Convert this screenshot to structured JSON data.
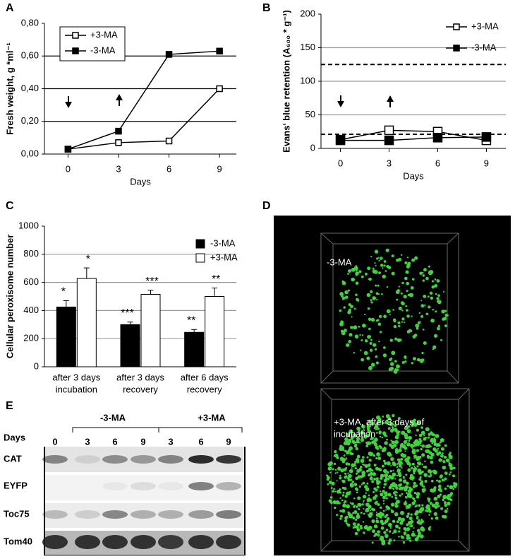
{
  "panel_labels": [
    "A",
    "B",
    "C",
    "D",
    "E"
  ],
  "chart_data": [
    {
      "type": "line",
      "ylabel": "Fresh weight, g *ml⁻¹",
      "xlabel": "Days",
      "x": [
        0,
        3,
        6,
        9
      ],
      "xlim": [
        -1.4,
        10
      ],
      "xticks": [
        0,
        3,
        6,
        9
      ],
      "ylim": [
        0,
        0.8
      ],
      "yticks": [
        {
          "value": 0,
          "label": "0,00"
        },
        {
          "value": 0.2,
          "label": "0,20"
        },
        {
          "value": 0.4,
          "label": "0,40"
        },
        {
          "value": 0.6,
          "label": "0,60"
        },
        {
          "value": 0.8,
          "label": "0,80"
        }
      ],
      "grid": true,
      "grid_color": "#000",
      "legend": "top-left",
      "series": [
        {
          "name": "+3-MA",
          "color": "#000",
          "marker_fill": "#fff",
          "values": [
            0.03,
            0.07,
            0.08,
            0.4
          ]
        },
        {
          "name": "-3-MA",
          "color": "#000",
          "marker_fill": "#000",
          "values": [
            0.03,
            0.14,
            0.61,
            0.63
          ]
        }
      ]
    },
    {
      "type": "line",
      "ylabel": "Evans' blue retention (A₆₀₀ * g⁻¹)",
      "xlabel": "Days",
      "x": [
        0,
        3,
        6,
        9
      ],
      "xlim": [
        -1.2,
        10.2
      ],
      "xticks": [
        0,
        3,
        6,
        9
      ],
      "ylim": [
        0,
        200
      ],
      "yticks": [
        0,
        50,
        100,
        150,
        200
      ],
      "grid": true,
      "grid_color": "#999",
      "legend": "top-right",
      "reference_lines": [
        125,
        21
      ],
      "series": [
        {
          "name": "+3-MA",
          "color": "#000",
          "marker_fill": "#fff",
          "values": [
            13,
            27,
            25,
            12
          ]
        },
        {
          "name": "-3-MA",
          "color": "#000",
          "marker_fill": "#000",
          "values": [
            12,
            12,
            16,
            17
          ]
        }
      ]
    },
    {
      "type": "bar",
      "ylabel": "Cellular peroxisome number",
      "categories": [
        [
          "after 3 days",
          "incubation"
        ],
        [
          "after 3 days",
          "recovery"
        ],
        [
          "after 6 days",
          "recovery"
        ]
      ],
      "ylim": [
        0,
        1000
      ],
      "yticks": [
        0,
        200,
        400,
        600,
        800,
        1000
      ],
      "grid": true,
      "grid_color": "#999",
      "legend": "top-right",
      "series": [
        {
          "name": "-3-MA",
          "color": "#000",
          "values": [
            425,
            300,
            245
          ],
          "errors": [
            45,
            18,
            20
          ],
          "annotations": [
            "*",
            "***",
            "**"
          ]
        },
        {
          "name": "+3-MA",
          "color": "#fff",
          "values": [
            628,
            515,
            500
          ],
          "errors": [
            75,
            30,
            60
          ],
          "annotations": [
            "*",
            "***",
            "**"
          ]
        }
      ]
    }
  ],
  "microscopy": {
    "images": [
      {
        "label": [
          "-3-MA"
        ]
      },
      {
        "label": [
          "+3-MA, after 3 days of",
          "incubation"
        ]
      }
    ]
  },
  "blot": {
    "groups": [
      "-3-MA",
      "+3-MA"
    ],
    "days_label": "Days",
    "lanes": [
      "0",
      "3",
      "6",
      "9",
      "3",
      "6",
      "9"
    ],
    "rows": [
      "CAT",
      "EYFP",
      "Toc75",
      "Tom40"
    ]
  }
}
